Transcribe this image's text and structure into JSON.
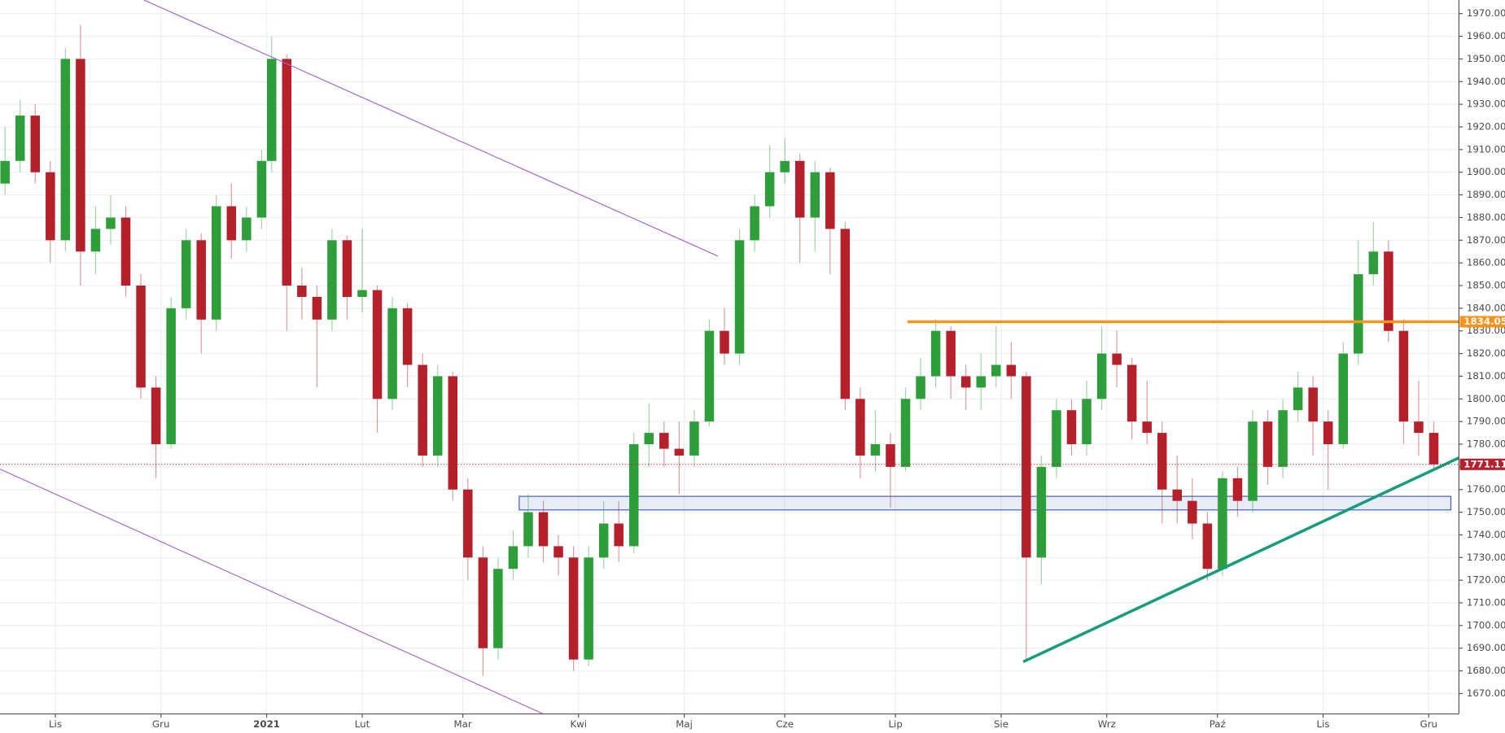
{
  "chart_data": {
    "type": "candlestick",
    "up_color": "#2e9e3a",
    "down_color": "#b5202a",
    "x": [
      0,
      3,
      6,
      9,
      12,
      15,
      18,
      21,
      24,
      27,
      30,
      33,
      36,
      39,
      42,
      45,
      48,
      51,
      53,
      56,
      59,
      62,
      65,
      68,
      71,
      74,
      77,
      80,
      83,
      86,
      89,
      92,
      95,
      98,
      101,
      104,
      107,
      110,
      113,
      116,
      119,
      122,
      125,
      128,
      131,
      134,
      137,
      140,
      143,
      146,
      149,
      152,
      155,
      158,
      161,
      164,
      167,
      170,
      173,
      176,
      179,
      182,
      185,
      188,
      191,
      194,
      197,
      200,
      203,
      206,
      209,
      212,
      215,
      218,
      221,
      224,
      227,
      230,
      233,
      236,
      239,
      242,
      245,
      248,
      251,
      254,
      257,
      260,
      263,
      266,
      269,
      272,
      275,
      278,
      281,
      284
    ],
    "open": [
      1895,
      1905,
      1925,
      1900,
      1870,
      1950,
      1865,
      1875,
      1880,
      1850,
      1805,
      1780,
      1840,
      1870,
      1835,
      1885,
      1870,
      1880,
      1905,
      1950,
      1850,
      1845,
      1835,
      1870,
      1845,
      1848,
      1800,
      1840,
      1815,
      1775,
      1810,
      1760,
      1730,
      1690,
      1725,
      1735,
      1750,
      1735,
      1730,
      1685,
      1730,
      1745,
      1735,
      1780,
      1785,
      1778,
      1775,
      1790,
      1830,
      1820,
      1870,
      1885,
      1900,
      1905,
      1880,
      1900,
      1875,
      1800,
      1775,
      1780,
      1770,
      1800,
      1810,
      1830,
      1810,
      1805,
      1810,
      1815,
      1810,
      1730,
      1770,
      1795,
      1780,
      1800,
      1820,
      1815,
      1790,
      1785,
      1760,
      1755,
      1745,
      1725,
      1765,
      1755,
      1790,
      1770,
      1795,
      1805,
      1790,
      1780,
      1820,
      1855,
      1865,
      1830,
      1790,
      1785
    ],
    "high": [
      1920,
      1932,
      1930,
      1905,
      1955,
      1965,
      1885,
      1890,
      1885,
      1855,
      1810,
      1845,
      1875,
      1873,
      1890,
      1895,
      1885,
      1910,
      1960,
      1952,
      1858,
      1850,
      1875,
      1872,
      1875,
      1850,
      1845,
      1842,
      1820,
      1815,
      1812,
      1765,
      1735,
      1730,
      1742,
      1758,
      1755,
      1740,
      1735,
      1735,
      1755,
      1755,
      1785,
      1798,
      1790,
      1790,
      1795,
      1835,
      1840,
      1875,
      1890,
      1912,
      1915,
      1908,
      1905,
      1902,
      1878,
      1805,
      1795,
      1785,
      1805,
      1818,
      1835,
      1832,
      1815,
      1820,
      1832,
      1825,
      1812,
      1775,
      1800,
      1800,
      1808,
      1832,
      1830,
      1818,
      1808,
      1790,
      1775,
      1765,
      1750,
      1768,
      1770,
      1795,
      1795,
      1800,
      1812,
      1810,
      1795,
      1825,
      1870,
      1878,
      1870,
      1835,
      1808,
      1790
    ],
    "low": [
      1890,
      1900,
      1895,
      1860,
      1865,
      1850,
      1855,
      1868,
      1845,
      1800,
      1765,
      1778,
      1835,
      1820,
      1830,
      1862,
      1865,
      1875,
      1900,
      1830,
      1835,
      1805,
      1830,
      1835,
      1838,
      1785,
      1795,
      1805,
      1770,
      1770,
      1755,
      1720,
      1678,
      1685,
      1720,
      1730,
      1728,
      1722,
      1680,
      1682,
      1725,
      1728,
      1732,
      1770,
      1770,
      1758,
      1770,
      1788,
      1815,
      1815,
      1865,
      1880,
      1895,
      1860,
      1865,
      1855,
      1795,
      1765,
      1768,
      1752,
      1768,
      1795,
      1805,
      1800,
      1795,
      1795,
      1805,
      1800,
      1685,
      1718,
      1765,
      1775,
      1775,
      1795,
      1805,
      1782,
      1780,
      1745,
      1745,
      1738,
      1720,
      1722,
      1748,
      1750,
      1762,
      1765,
      1790,
      1775,
      1760,
      1778,
      1815,
      1850,
      1825,
      1780,
      1775,
      1768
    ],
    "close": [
      1905,
      1925,
      1900,
      1870,
      1950,
      1865,
      1875,
      1880,
      1850,
      1805,
      1780,
      1840,
      1870,
      1835,
      1885,
      1870,
      1880,
      1905,
      1950,
      1850,
      1845,
      1835,
      1870,
      1845,
      1848,
      1800,
      1840,
      1815,
      1775,
      1810,
      1760,
      1730,
      1690,
      1725,
      1735,
      1750,
      1735,
      1730,
      1685,
      1730,
      1745,
      1735,
      1780,
      1785,
      1778,
      1775,
      1790,
      1830,
      1820,
      1870,
      1885,
      1900,
      1905,
      1880,
      1900,
      1875,
      1800,
      1775,
      1780,
      1770,
      1800,
      1810,
      1830,
      1810,
      1805,
      1810,
      1815,
      1810,
      1730,
      1770,
      1795,
      1780,
      1800,
      1820,
      1815,
      1790,
      1785,
      1760,
      1755,
      1745,
      1725,
      1765,
      1755,
      1790,
      1770,
      1795,
      1805,
      1790,
      1780,
      1820,
      1855,
      1865,
      1830,
      1790,
      1785,
      1771.11
    ],
    "xlim": [
      -1,
      289
    ],
    "xticks": [
      {
        "value": 10,
        "label": "Lis"
      },
      {
        "value": 31,
        "label": "Gru"
      },
      {
        "value": 52,
        "label": "2021"
      },
      {
        "value": 71,
        "label": "Lut"
      },
      {
        "value": 91,
        "label": "Mar"
      },
      {
        "value": 114,
        "label": "Kwi"
      },
      {
        "value": 135,
        "label": "Maj"
      },
      {
        "value": 155,
        "label": "Cze"
      },
      {
        "value": 177,
        "label": "Lip"
      },
      {
        "value": 198,
        "label": "Sie"
      },
      {
        "value": 219,
        "label": "Wrz"
      },
      {
        "value": 241,
        "label": "Paź"
      },
      {
        "value": 262,
        "label": "Lis"
      },
      {
        "value": 283,
        "label": "Gru"
      }
    ],
    "ylim": [
      1661,
      1976
    ],
    "yticks": [
      {
        "value": 1670,
        "label": "1670.00"
      },
      {
        "value": 1680,
        "label": "1680.00"
      },
      {
        "value": 1690,
        "label": "1690.00"
      },
      {
        "value": 1700,
        "label": "1700.00"
      },
      {
        "value": 1710,
        "label": "1710.00"
      },
      {
        "value": 1720,
        "label": "1720.00"
      },
      {
        "value": 1730,
        "label": "1730.00"
      },
      {
        "value": 1740,
        "label": "1740.00"
      },
      {
        "value": 1750,
        "label": "1750.00"
      },
      {
        "value": 1760,
        "label": "1760.00"
      },
      {
        "value": 1770,
        "label": "1770.00"
      },
      {
        "value": 1780,
        "label": "1780.00"
      },
      {
        "value": 1790,
        "label": "1790.00"
      },
      {
        "value": 1800,
        "label": "1800.00"
      },
      {
        "value": 1810,
        "label": "1810.00"
      },
      {
        "value": 1820,
        "label": "1820.00"
      },
      {
        "value": 1830,
        "label": "1830.00"
      },
      {
        "value": 1840,
        "label": "1840.00"
      },
      {
        "value": 1850,
        "label": "1850.00"
      },
      {
        "value": 1860,
        "label": "1860.00"
      },
      {
        "value": 1870,
        "label": "1870.00"
      },
      {
        "value": 1880,
        "label": "1880.00"
      },
      {
        "value": 1890,
        "label": "1890.00"
      },
      {
        "value": 1900,
        "label": "1900.00"
      },
      {
        "value": 1910,
        "label": "1910.00"
      },
      {
        "value": 1920,
        "label": "1920.00"
      },
      {
        "value": 1930,
        "label": "1930.00"
      },
      {
        "value": 1940,
        "label": "1940.00"
      },
      {
        "value": 1950,
        "label": "1950.00"
      },
      {
        "value": 1960,
        "label": "1960.00"
      },
      {
        "value": 1970,
        "label": "1970.00"
      }
    ],
    "grid": true,
    "trendlines": [
      {
        "color": "#a566cc",
        "points": [
          [
            27.6,
            1976
          ],
          [
            141.7,
            1863
          ]
        ]
      },
      {
        "color": "#a566cc",
        "points": [
          [
            -1,
            1769
          ],
          [
            107,
            1661
          ]
        ]
      },
      {
        "color": "#179c7d",
        "points": [
          [
            202.4,
            1684
          ],
          [
            289,
            1774
          ]
        ]
      }
    ],
    "zone": {
      "from": 1751,
      "to": 1757,
      "x_start": 102.2,
      "x_end": 287.4,
      "color": "#3b5fc0"
    },
    "resistance": {
      "value": 1834.05,
      "x_start": 179.4,
      "color": "#f7931a"
    },
    "last_price": {
      "value": 1771.11,
      "color": "#b5202a"
    }
  }
}
